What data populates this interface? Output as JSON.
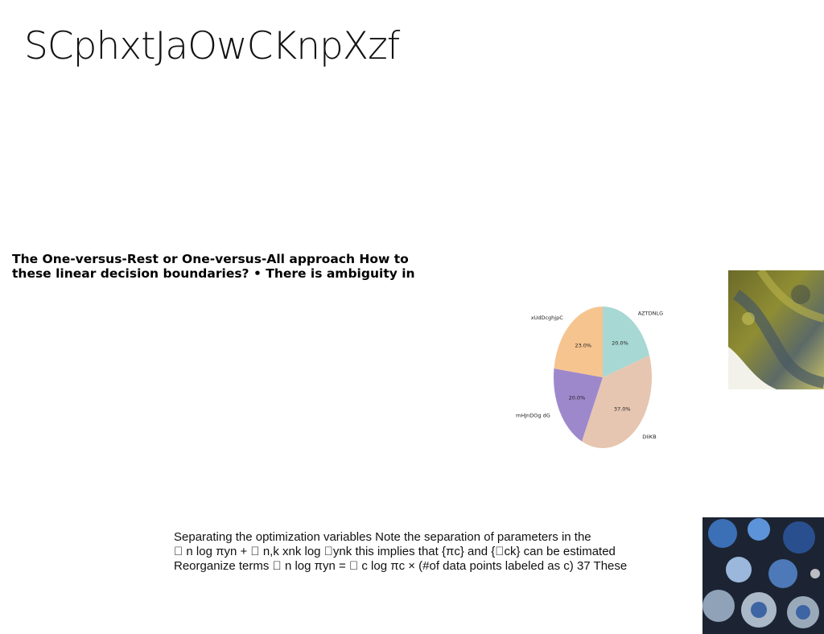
{
  "slide": {
    "title": "SCphxtJaOwCKnpXzf",
    "heading_lines": [
      "The One-versus-Rest or One-versus-All approach How to",
      "these linear decision boundaries? • There is ambiguity in"
    ],
    "body_lines": [
      "Separating the optimization variables Note the separation of parameters in the",
      "\u0000 n log πyn + \u0000 n,k xnk log \u0000ynk this implies that {πc} and {\u0000ck} can be estimated",
      "Reorganize terms \u0000 n log πyn = \u0000 c log πc × (#of data points labeled as c) 37 These"
    ]
  },
  "chart_data": {
    "type": "pie",
    "title": "",
    "start_angle_deg": 90,
    "direction": "clockwise",
    "slices": [
      {
        "label": "AZTDNLG",
        "value": 20.0,
        "pct_label": "20.0%",
        "color": "#a8d8d3"
      },
      {
        "label": "DIiKB",
        "value": 37.0,
        "pct_label": "37.0%",
        "color": "#e6c6b1"
      },
      {
        "label": "mHJnDOg dG",
        "value": 20.0,
        "pct_label": "20.0%",
        "color": "#9e88cc"
      },
      {
        "label": "xUdDcghjpC",
        "value": 23.0,
        "pct_label": "23.0%",
        "color": "#f6c48f"
      }
    ]
  },
  "images": {
    "moss_photo": "abstract moss-covered rock texture",
    "table_photo": "blue ceramic tableware on dark table"
  }
}
